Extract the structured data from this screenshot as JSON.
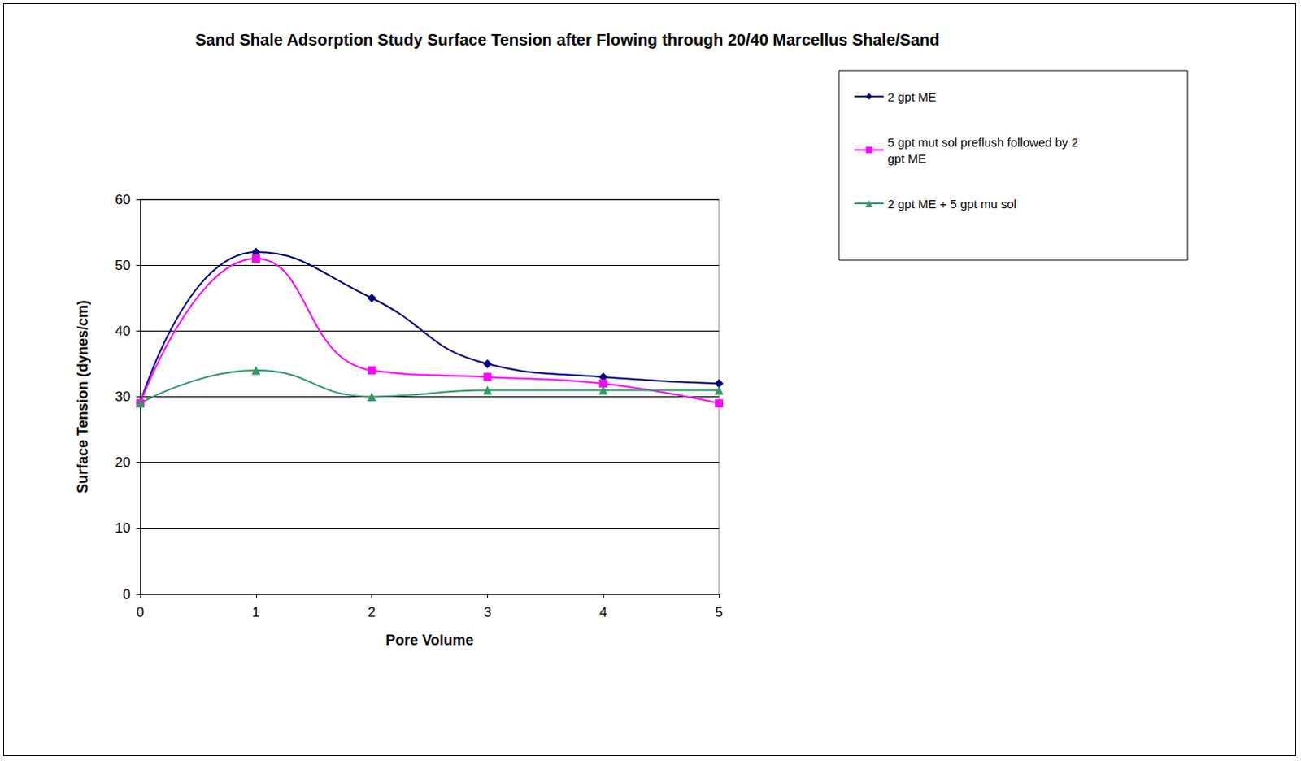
{
  "chart_data": {
    "type": "line",
    "title": "Sand Shale Adsorption Study Surface Tension after Flowing through 20/40 Marcellus Shale/Sand",
    "x_label": "Pore Volume",
    "y_label": "Surface Tension (dynes/cm)",
    "x": [
      0,
      1,
      2,
      3,
      4,
      5
    ],
    "series": [
      {
        "name": "2 gpt ME",
        "color": "#000080",
        "marker": "diamond",
        "values": [
          29,
          52,
          45,
          35,
          33,
          32
        ]
      },
      {
        "name": "5 gpt mut sol preflush followed by 2 gpt ME",
        "color": "#ff00ff",
        "marker": "square",
        "values": [
          29,
          51,
          34,
          33,
          32,
          29
        ]
      },
      {
        "name": "2 gpt ME + 5 gpt mu sol",
        "color": "#339966",
        "marker": "triangle",
        "values": [
          29,
          34,
          30,
          31,
          31,
          31
        ]
      }
    ],
    "xlim": [
      0,
      5
    ],
    "xticks": [
      0,
      1,
      2,
      3,
      4,
      5
    ],
    "ylim": [
      0,
      60
    ],
    "yticks": [
      0,
      10,
      20,
      30,
      40,
      50,
      60
    ],
    "grid": true,
    "legend": "right",
    "line_style": "smooth"
  }
}
